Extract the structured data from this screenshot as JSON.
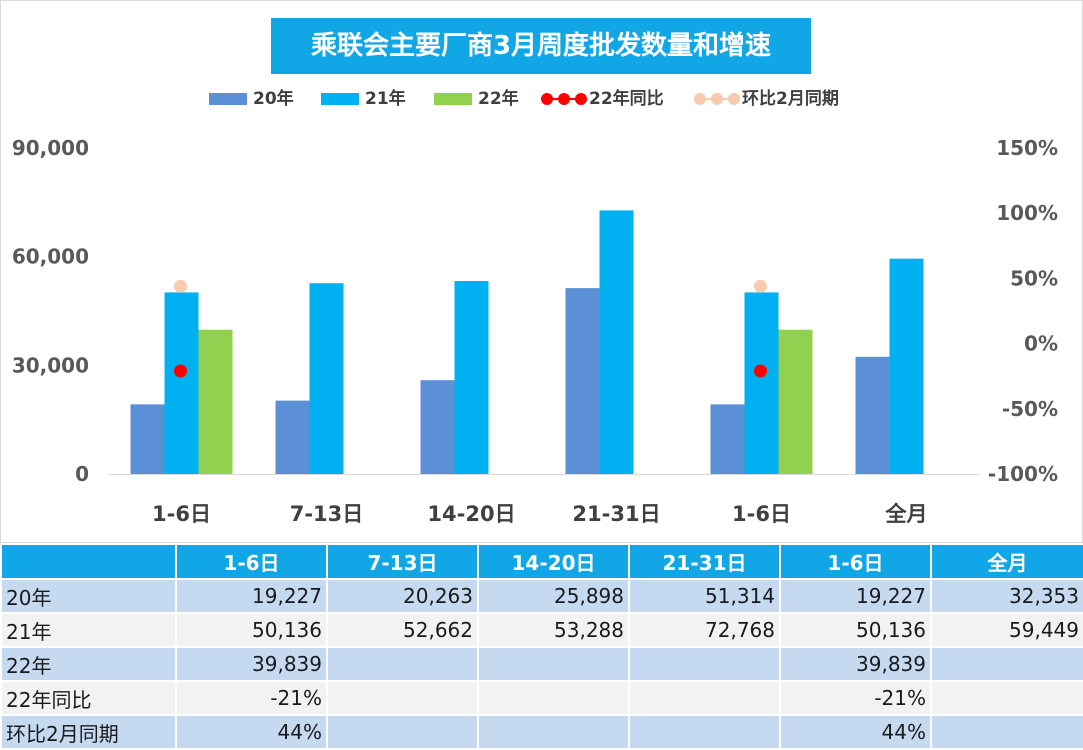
{
  "chart_data": {
    "type": "bar",
    "title": "乘联会主要厂商3月周度批发数量和增速",
    "categories": [
      "1-6日",
      "7-13日",
      "14-20日",
      "21-31日",
      "1-6日",
      "全月"
    ],
    "series": [
      {
        "name": "20年",
        "kind": "bar",
        "axis": "left",
        "color": "#5b8fd6",
        "values": [
          19227,
          20263,
          25898,
          51314,
          19227,
          32353
        ]
      },
      {
        "name": "21年",
        "kind": "bar",
        "axis": "left",
        "color": "#00b0f0",
        "values": [
          50136,
          52662,
          53288,
          72768,
          50136,
          59449
        ]
      },
      {
        "name": "22年",
        "kind": "bar",
        "axis": "left",
        "color": "#92d050",
        "values": [
          39839,
          null,
          null,
          null,
          39839,
          null
        ]
      },
      {
        "name": "22年同比",
        "kind": "line-marker",
        "axis": "right",
        "color": "#ff0000",
        "values": [
          -21,
          null,
          null,
          null,
          -21,
          null
        ]
      },
      {
        "name": "环比2月同期",
        "kind": "line-marker",
        "axis": "right",
        "color": "#f8cbad",
        "values": [
          44,
          null,
          null,
          null,
          44,
          null
        ]
      }
    ],
    "y_left": {
      "ticks": [
        "0",
        "30,000",
        "60,000",
        "90,000"
      ],
      "tick_values": [
        0,
        30000,
        60000,
        90000
      ],
      "range": [
        0,
        90000
      ]
    },
    "y_right": {
      "ticks": [
        "-100%",
        "-50%",
        "0%",
        "50%",
        "100%",
        "150%"
      ],
      "tick_values": [
        -100,
        -50,
        0,
        50,
        100,
        150
      ],
      "range": [
        -100,
        150
      ]
    },
    "grid": false,
    "legend_position": "top"
  },
  "table": {
    "headers": [
      "",
      "1-6日",
      "7-13日",
      "14-20日",
      "21-31日",
      "1-6日",
      "全月"
    ],
    "rows": [
      [
        "20年",
        "19,227",
        "20,263",
        "25,898",
        "51,314",
        "19,227",
        "32,353"
      ],
      [
        "21年",
        "50,136",
        "52,662",
        "53,288",
        "72,768",
        "50,136",
        "59,449"
      ],
      [
        "22年",
        "39,839",
        "",
        "",
        "",
        "39,839",
        ""
      ],
      [
        "22年同比",
        "-21%",
        "",
        "",
        "",
        "-21%",
        ""
      ],
      [
        "环比2月同期",
        "44%",
        "",
        "",
        "",
        "44%",
        ""
      ]
    ]
  }
}
